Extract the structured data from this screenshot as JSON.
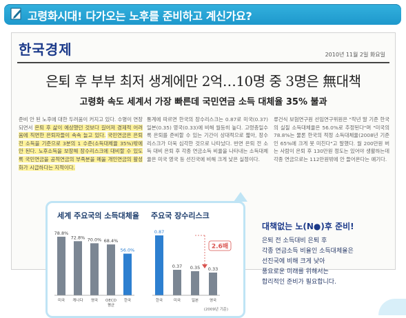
{
  "banner": {
    "title": "고령화시대! 다가오는 노후를 준비하고 계신가요?",
    "icon": "pencil-note-icon"
  },
  "newspaper": {
    "masthead": "한국경제",
    "date": "2010년 11월 2일 화요일",
    "headline": "은퇴 후 부부 최저 생계에만 2억…10명 중 3명은 無대책",
    "subheadline": "고령화 속도 세계서 가장 빠른데 국민연금 소득 대체율 35% 불과",
    "columns": [
      [
        {
          "t": "준비 안 된 노후에 대한 두려움이 커지고 있다. 수명이 연장되면서 ",
          "h": false
        },
        {
          "t": "은퇴 후 삶이 예상했던 것보다 길어져 경제적 어려움에 직면한 은퇴자들이 속속 늘고 있다.",
          "h": true
        },
        {
          "t": " ",
          "h": false
        },
        {
          "t": "국민연금은 은퇴 전 소득을 기준으로 3분의 1 수준(소득대체율 35%)밖에 안 된다. 노후소득을 보장해 장수리스크에 대비할 수 있도록 국민연금을 공적연금의 부족분을 메울 개인연금의 활성화가 시급하다는 지적이다.",
          "h": true
        }
      ],
      [
        {
          "t": "통계에 따르면 한국의 장수리스크는 0.87로 미국(0.37) 일본(0.35) 영국(0.33)에 비해 월등히 높다. 고령층일수록 은퇴를 준비할 수 있는 기간이 상대적으로 짧아, 장수리스크가 더욱 심각한 것으로 나타났다. 반면 은퇴 전 소득 대비 은퇴 후 각종 연금소득 비율을 나타내는 소득대체율은 미국 영국 등 선진국에 비해 크게 낮은 실정이다.",
          "h": false
        }
      ],
      [
        {
          "t": "류건식 보험연구원 선임연구위원은 \"작년 말 기준 한국의 실질 소득대체율은 56.0%로 추정된다\"며 \"미국의 78.8%는 물론 한국의 적정 소득대체율(2008년 기준인 65%에 크게 못 미친다\"고 말했다. 월 200만원 버는 사람이 은퇴 후 130만원 정도는 있어야 생활하는데 각종 연금으로는 112만원밖에 안 들어온다는 얘기다.",
          "h": false
        }
      ]
    ]
  },
  "chart_data": [
    {
      "type": "bar",
      "title": "세계 주요국의 소득대체율",
      "categories": [
        "미국",
        "캐나다",
        "영국",
        "OECD 평균",
        "한국"
      ],
      "values": [
        78.8,
        72.8,
        70.0,
        68.4,
        56.0
      ],
      "value_labels": [
        "78.8%",
        "72.8%",
        "70.0%",
        "68.4%",
        "56.0%"
      ],
      "colors": [
        "#7b8693",
        "#7b8693",
        "#7b8693",
        "#7b8693",
        "#2d7fd0"
      ],
      "ylim": [
        0,
        100
      ]
    },
    {
      "type": "bar",
      "title": "주요국 장수리스크",
      "categories": [
        "한국",
        "미국",
        "일본",
        "영국"
      ],
      "values": [
        0.87,
        0.37,
        0.35,
        0.33
      ],
      "value_labels": [
        "0.87",
        "0.37",
        "0.35",
        "0.33"
      ],
      "colors": [
        "#2d7fd0",
        "#7b8693",
        "#7b8693",
        "#7b8693"
      ],
      "ylim": [
        0,
        1.0
      ],
      "annotation": "2.6배",
      "note": "(2009년 기준)"
    }
  ],
  "tip": {
    "title": "대책없는 노(N●)후 준비!",
    "lines": [
      "은퇴 전 소득대비 은퇴 후",
      "각종 연금소득 비율인 소득대체율은",
      "선진국에 비해 크게 낮아",
      "풍요로운 미래를 위해서는",
      "합리적인 준비가 필요합니다."
    ]
  }
}
